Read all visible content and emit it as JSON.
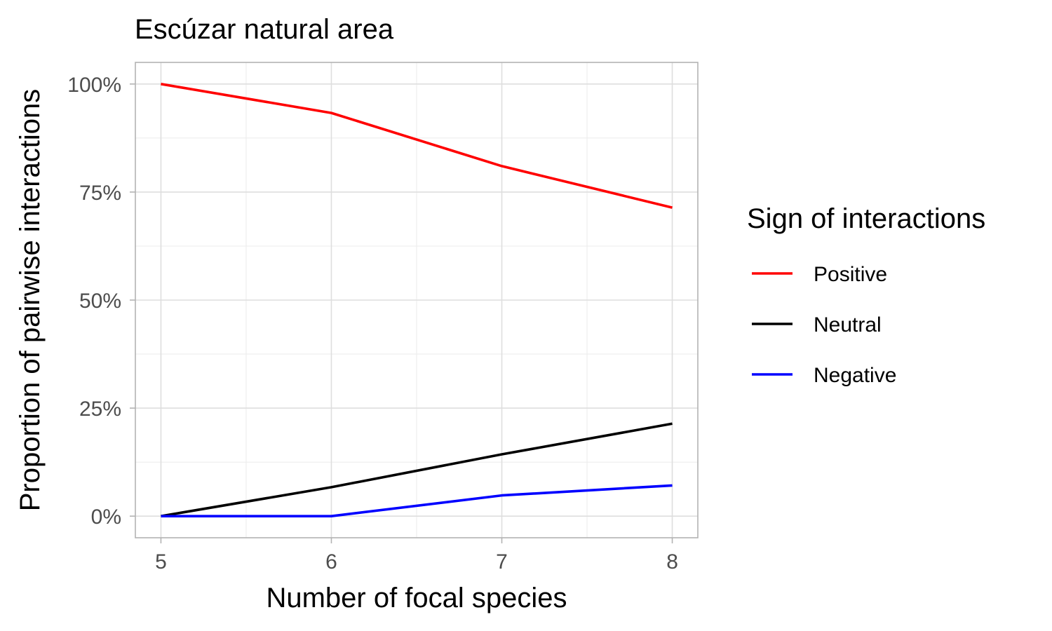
{
  "chart_data": {
    "type": "line",
    "title": "Escúzar natural area",
    "xlabel": "Number of focal species",
    "ylabel": "Proportion of pairwise interactions",
    "x": [
      5,
      6,
      7,
      8
    ],
    "xlim": [
      4.85,
      8.15
    ],
    "ylim": [
      -0.05,
      1.05
    ],
    "x_ticks": [
      5,
      6,
      7,
      8
    ],
    "x_tick_labels": [
      "5",
      "6",
      "7",
      "8"
    ],
    "y_ticks": [
      0,
      0.25,
      0.5,
      0.75,
      1.0
    ],
    "y_tick_labels": [
      "0%",
      "25%",
      "50%",
      "75%",
      "100%"
    ],
    "grid": true,
    "legend": {
      "title": "Sign of interactions",
      "position": "right"
    },
    "series": [
      {
        "name": "Positive",
        "color": "#ff0000",
        "values": [
          1.0,
          0.933,
          0.81,
          0.714
        ]
      },
      {
        "name": "Neutral",
        "color": "#000000",
        "values": [
          0.0,
          0.067,
          0.143,
          0.214
        ]
      },
      {
        "name": "Negative",
        "color": "#0000ff",
        "values": [
          0.0,
          0.0,
          0.048,
          0.071
        ]
      }
    ]
  }
}
